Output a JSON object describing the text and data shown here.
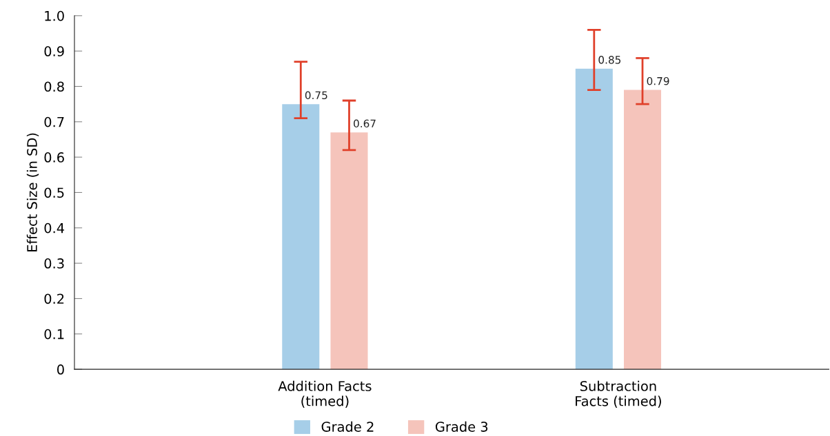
{
  "chart_data": {
    "type": "bar",
    "ylabel": "Effect Size (in SD)",
    "categories": [
      "Addition Facts\n(timed)",
      "Subtraction\nFacts (timed)"
    ],
    "series": [
      {
        "name": "Grade 2",
        "color": "#a6cee8",
        "values": [
          0.75,
          0.85
        ],
        "errors": [
          [
            0.71,
            0.87
          ],
          [
            0.79,
            0.96
          ]
        ]
      },
      {
        "name": "Grade 3",
        "color": "#f5c4bb",
        "values": [
          0.67,
          0.79
        ],
        "errors": [
          [
            0.62,
            0.76
          ],
          [
            0.75,
            0.88
          ]
        ]
      }
    ],
    "data_labels": true,
    "ylim": [
      0,
      1.0
    ],
    "yticks": [
      {
        "value": 0,
        "label": "0"
      },
      0.1,
      0.2,
      0.3,
      0.4,
      0.5,
      0.6,
      0.7,
      0.8,
      0.9,
      {
        "value": 1.0,
        "label": "1.0"
      }
    ],
    "grid": false,
    "legend": "bottom"
  }
}
